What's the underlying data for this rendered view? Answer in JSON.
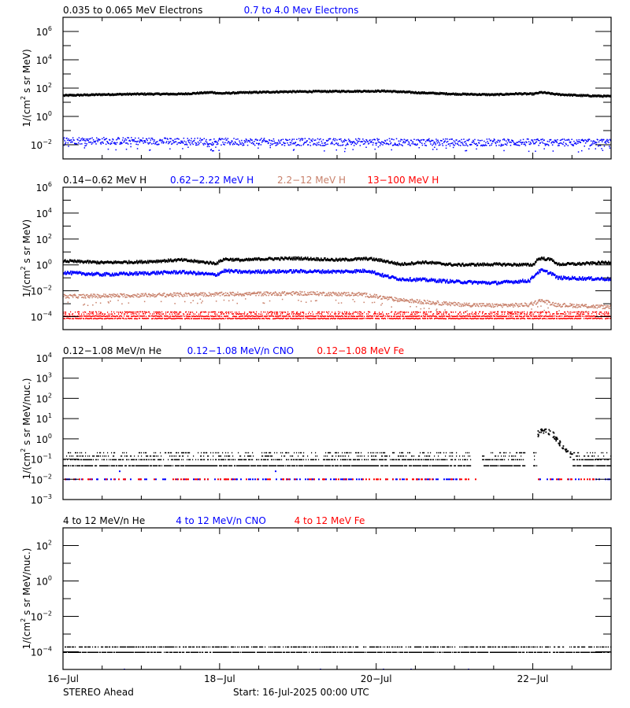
{
  "spacecraft": "STEREO Ahead",
  "start_label": "Start: 16-Jul-2025 00:00 UTC",
  "x_axis": {
    "tick_labels": [
      "16-Jul",
      "18-Jul",
      "20-Jul",
      "22-Jul"
    ],
    "tick_days": [
      0,
      2,
      4,
      6
    ],
    "range_days": [
      0,
      7
    ],
    "minor_tick_every_days": 0.5
  },
  "colors": {
    "black": "#000000",
    "blue": "#0000ff",
    "tan": "#c8806a",
    "red": "#ff0000"
  },
  "chart_data": [
    {
      "type": "scatter",
      "title": "Electrons",
      "ylabel": "1/(cm^2 s sr MeV)",
      "yscale": "log",
      "ylim_exp": [
        -3,
        7
      ],
      "ytick_exps": [
        -2,
        0,
        2,
        4,
        6
      ],
      "yminor_exps": [
        -1,
        1,
        3,
        5
      ],
      "legend": [
        {
          "label": "0.035 to 0.065 MeV Electrons",
          "color": "#000000"
        },
        {
          "label": "0.7 to 4.0 Mev Electrons",
          "color": "#0000ff"
        }
      ],
      "series": [
        {
          "name": "0.035 to 0.065 MeV Electrons",
          "color": "#000000",
          "spread": 0.04,
          "style": "line",
          "x": [
            0,
            0.5,
            1.0,
            1.5,
            1.9,
            2.0,
            2.3,
            2.8,
            3.3,
            3.8,
            4.1,
            4.5,
            5.0,
            5.5,
            5.8,
            6.0,
            6.1,
            6.3,
            6.6,
            7.0
          ],
          "y": [
            30,
            35,
            38,
            38,
            50,
            42,
            48,
            55,
            58,
            60,
            62,
            48,
            38,
            34,
            40,
            38,
            50,
            36,
            30,
            26
          ]
        },
        {
          "name": "0.7 to 4.0 Mev Electrons",
          "color": "#0000ff",
          "spread": 0.25,
          "style": "noisy",
          "x": [
            0,
            1,
            2,
            3,
            4,
            5,
            6,
            7
          ],
          "y": [
            0.022,
            0.02,
            0.018,
            0.017,
            0.017,
            0.016,
            0.016,
            0.015
          ]
        }
      ]
    },
    {
      "type": "scatter",
      "title": "Protons",
      "ylabel": "1/(cm^2 s sr MeV)",
      "yscale": "log",
      "ylim_exp": [
        -5,
        6
      ],
      "ytick_exps": [
        -4,
        -2,
        0,
        2,
        4,
        6
      ],
      "yminor_exps": [
        -3,
        -1,
        1,
        3,
        5
      ],
      "legend": [
        {
          "label": "0.14-0.62 MeV H",
          "color": "#000000"
        },
        {
          "label": "0.62-2.22 MeV H",
          "color": "#0000ff"
        },
        {
          "label": "2.2-12 MeV H",
          "color": "#c8806a"
        },
        {
          "label": "13-100 MeV H",
          "color": "#ff0000"
        }
      ],
      "series": [
        {
          "name": "0.14-0.62 MeV H",
          "color": "#000000",
          "spread": 0.08,
          "style": "line",
          "x": [
            0,
            0.5,
            1.0,
            1.5,
            1.95,
            2.05,
            2.3,
            2.5,
            3.0,
            3.5,
            3.9,
            4.1,
            4.3,
            4.6,
            5.0,
            5.5,
            6.0,
            6.05,
            6.1,
            6.25,
            6.3,
            6.6,
            7.0
          ],
          "y": [
            2.0,
            1.5,
            1.7,
            2.4,
            1.3,
            2.8,
            2.3,
            2.8,
            3.2,
            2.4,
            3.0,
            2.0,
            1.1,
            1.6,
            1.0,
            1.1,
            1.0,
            2.6,
            3.2,
            2.4,
            1.1,
            1.2,
            1.6
          ]
        },
        {
          "name": "0.62-2.22 MeV H",
          "color": "#0000ff",
          "spread": 0.1,
          "style": "line",
          "x": [
            0,
            0.5,
            1.0,
            1.5,
            1.95,
            2.05,
            2.3,
            2.5,
            3.0,
            3.5,
            3.9,
            4.1,
            4.3,
            4.6,
            5.0,
            5.5,
            5.95,
            6.05,
            6.1,
            6.25,
            6.3,
            6.6,
            7.0
          ],
          "y": [
            0.25,
            0.18,
            0.22,
            0.28,
            0.17,
            0.35,
            0.28,
            0.3,
            0.32,
            0.3,
            0.35,
            0.14,
            0.08,
            0.07,
            0.05,
            0.04,
            0.06,
            0.25,
            0.38,
            0.2,
            0.1,
            0.09,
            0.08
          ]
        },
        {
          "name": "2.2-12 MeV H",
          "color": "#c8806a",
          "spread": 0.15,
          "style": "noisy",
          "x": [
            0,
            1,
            2,
            3,
            3.8,
            4.2,
            4.6,
            5.0,
            5.5,
            5.95,
            6.1,
            6.3,
            7.0
          ],
          "y": [
            0.004,
            0.005,
            0.006,
            0.007,
            0.006,
            0.0025,
            0.0015,
            0.001,
            0.0008,
            0.0009,
            0.002,
            0.0009,
            0.0006
          ]
        },
        {
          "name": "13-100 MeV H",
          "color": "#ff0000",
          "spread": 0.0,
          "style": "bands",
          "x": [
            0,
            7
          ],
          "y": [
            0.00015,
            0.00015
          ],
          "band_levels": [
            8e-05,
            0.00012,
            0.00018,
            0.00025
          ]
        }
      ]
    },
    {
      "type": "scatter",
      "title": "Heavy ions 0.12-1.08 MeV/n",
      "ylabel": "1/(cm^2 s sr MeV/nuc.)",
      "yscale": "log",
      "ylim_exp": [
        -3,
        4
      ],
      "ytick_exps": [
        -3,
        -2,
        -1,
        0,
        1,
        2,
        3,
        4
      ],
      "yminor_exps": [],
      "legend": [
        {
          "label": "0.12-1.08 MeV/n He",
          "color": "#000000"
        },
        {
          "label": "0.12-1.08 MeV/n CNO",
          "color": "#0000ff"
        },
        {
          "label": "0.12-1.08 MeV Fe",
          "color": "#ff0000"
        }
      ],
      "series": [
        {
          "name": "0.12-1.08 MeV/n He",
          "color": "#000000",
          "style": "quantized",
          "levels": [
            0.05,
            0.1,
            0.15,
            0.22
          ],
          "gaps": [
            [
              5.2,
              5.35
            ],
            [
              5.9,
              6.0
            ]
          ],
          "event": {
            "x0": 6.05,
            "x1": 6.5,
            "peak_x": 6.15,
            "peak_y": 2.5
          },
          "x": [
            0,
            7
          ],
          "y": [
            0.1,
            0.1
          ]
        },
        {
          "name": "0.12-1.08 MeV/n CNO",
          "color": "#0000ff",
          "style": "sparse",
          "levels": [
            0.01,
            0.025
          ],
          "x": [
            0,
            7
          ],
          "y": [
            0.01,
            0.01
          ]
        },
        {
          "name": "0.12-1.08 MeV Fe",
          "color": "#ff0000",
          "style": "sparse",
          "levels": [
            0.01
          ],
          "x": [
            0,
            7
          ],
          "y": [
            0.01,
            0.01
          ]
        }
      ]
    },
    {
      "type": "scatter",
      "title": "Heavy ions 4 to 12 MeV/n",
      "ylabel": "1/(cm^2 s sr MeV/nuc.)",
      "yscale": "log",
      "ylim_exp": [
        -5,
        3
      ],
      "ytick_exps": [
        -4,
        -2,
        0,
        2
      ],
      "yminor_exps": [
        -3,
        -1,
        1
      ],
      "legend": [
        {
          "label": "4 to 12 MeV/n He",
          "color": "#000000"
        },
        {
          "label": "4 to 12 MeV/n CNO",
          "color": "#0000ff"
        },
        {
          "label": "4 to 12 MeV Fe",
          "color": "#ff0000"
        }
      ],
      "series": [
        {
          "name": "4 to 12 MeV/n He",
          "color": "#000000",
          "style": "quantized",
          "levels": [
            0.0001,
            0.0002
          ],
          "gaps": [],
          "x": [
            0,
            7
          ],
          "y": [
            0.0001,
            0.0001
          ]
        },
        {
          "name": "4 to 12 MeV/n CNO",
          "color": "#0000ff",
          "style": "sparse",
          "levels": [
            1e-05
          ],
          "x": [
            0,
            7
          ],
          "y": [
            1e-05,
            1e-05
          ]
        }
      ]
    }
  ]
}
